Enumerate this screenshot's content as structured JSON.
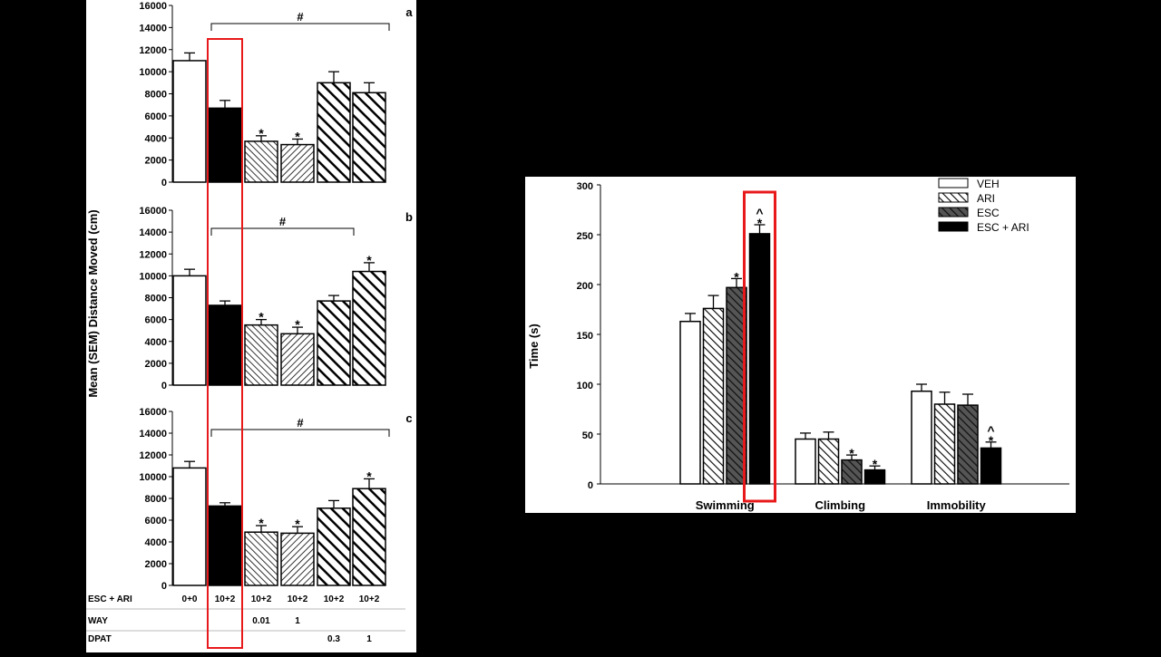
{
  "chart_data": [
    {
      "type": "bar",
      "title": "",
      "ylabel": "Mean (SEM) Distance Moved (cm)",
      "ylim": [
        0,
        16000
      ],
      "yticks": [
        0,
        2000,
        4000,
        6000,
        8000,
        10000,
        12000,
        14000,
        16000
      ],
      "table_rows": [
        {
          "label": "ESC + ARI",
          "values": [
            "0+0",
            "10+2",
            "10+2",
            "10+2",
            "10+2",
            "10+2"
          ]
        },
        {
          "label": "WAY",
          "values": [
            "",
            "",
            "0.01",
            "1",
            "",
            ""
          ]
        },
        {
          "label": "DPAT",
          "values": [
            "",
            "",
            "",
            "",
            "0.3",
            "1"
          ]
        }
      ],
      "panels": [
        {
          "letter": "a",
          "values": [
            11000,
            6700,
            3700,
            3400,
            9000,
            8100
          ],
          "errors": [
            700,
            700,
            500,
            500,
            1000,
            900
          ],
          "stars": [
            "",
            "",
            "*",
            "*",
            "",
            ""
          ],
          "bracket": {
            "from": 1,
            "to": 5,
            "label": "#"
          }
        },
        {
          "letter": "b",
          "values": [
            10000,
            7300,
            5500,
            4700,
            7700,
            10400
          ],
          "errors": [
            600,
            400,
            500,
            600,
            500,
            800
          ],
          "stars": [
            "",
            "",
            "*",
            "*",
            "",
            "*"
          ],
          "bracket": {
            "from": 1,
            "to": 4,
            "label": "#"
          }
        },
        {
          "letter": "c",
          "values": [
            10800,
            7300,
            4900,
            4800,
            7100,
            8900
          ],
          "errors": [
            600,
            300,
            600,
            600,
            700,
            900
          ],
          "stars": [
            "",
            "",
            "*",
            "*",
            "",
            "*"
          ],
          "bracket": {
            "from": 1,
            "to": 5,
            "label": "#"
          }
        }
      ]
    },
    {
      "type": "bar",
      "title": "",
      "ylabel": "Time (s)",
      "ylim": [
        0,
        300
      ],
      "yticks": [
        0,
        50,
        100,
        150,
        200,
        250,
        300
      ],
      "categories": [
        "Swimming",
        "Climbing",
        "Immobility"
      ],
      "legend_position": "top-right",
      "series": [
        {
          "name": "VEH",
          "values": [
            163,
            45,
            93
          ],
          "errors": [
            8,
            6,
            7
          ],
          "marks": [
            "",
            "",
            ""
          ]
        },
        {
          "name": "ARI",
          "values": [
            176,
            45,
            80
          ],
          "errors": [
            13,
            7,
            12
          ],
          "marks": [
            "",
            "",
            ""
          ]
        },
        {
          "name": "ESC",
          "values": [
            197,
            24,
            79
          ],
          "errors": [
            9,
            5,
            11
          ],
          "marks": [
            "*",
            "*",
            ""
          ]
        },
        {
          "name": "ESC + ARI",
          "values": [
            251,
            14,
            36
          ],
          "errors": [
            9,
            4,
            6
          ],
          "marks": [
            "^\n*",
            "*",
            "^\n*"
          ]
        }
      ]
    }
  ],
  "highlight_color": "#e8191b"
}
